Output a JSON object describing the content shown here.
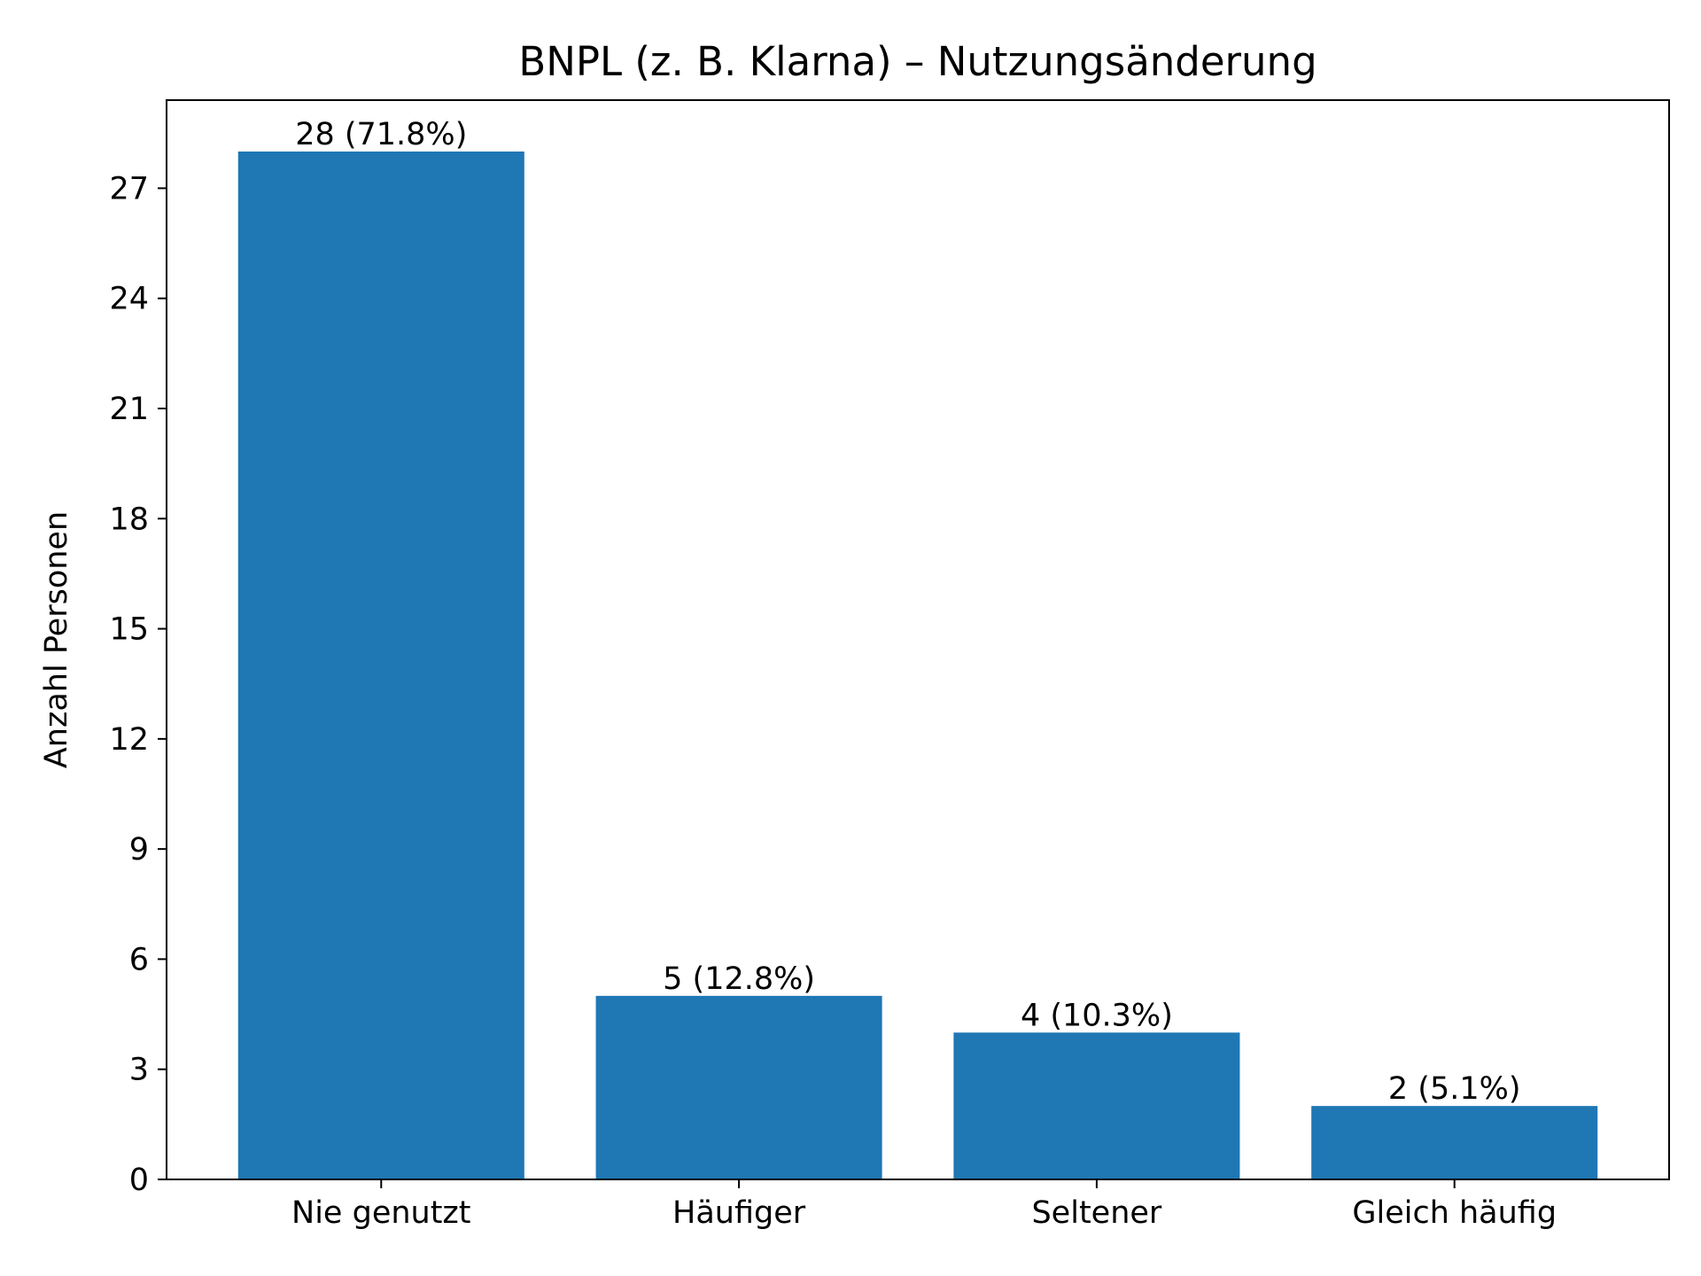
{
  "chart_data": {
    "type": "bar",
    "title": "BNPL (z. B. Klarna) – Nutzungsänderung",
    "xlabel": "",
    "ylabel": "Anzahl Personen",
    "categories": [
      "Nie genutzt",
      "Häufiger",
      "Seltener",
      "Gleich häufig"
    ],
    "values": [
      28,
      5,
      4,
      2
    ],
    "data_labels": [
      "28 (71.8%)",
      "5 (12.8%)",
      "4 (10.3%)",
      "2 (5.1%)"
    ],
    "yticks": [
      0,
      3,
      6,
      9,
      12,
      15,
      18,
      21,
      24,
      27
    ],
    "ylim": [
      0,
      29.4
    ],
    "grid": false,
    "legend": "none",
    "bar_color": "#1f77b4"
  }
}
